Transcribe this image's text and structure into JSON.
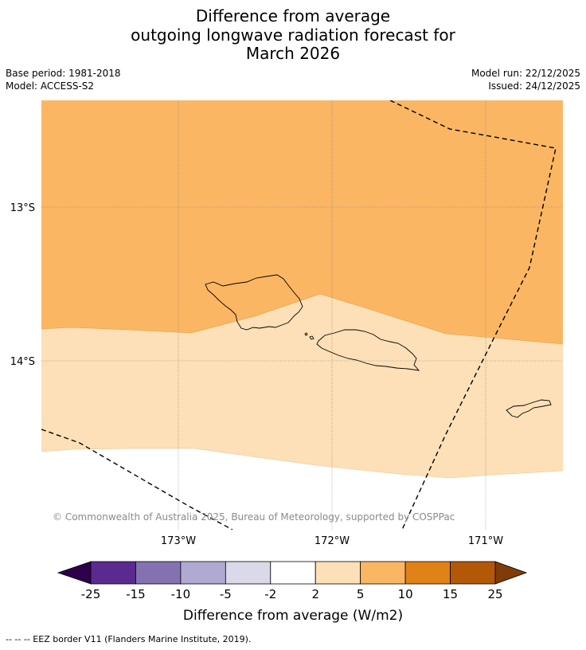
{
  "title": {
    "line1": "Difference from average",
    "line2": "outgoing longwave radiation forecast for",
    "line3": "March 2026"
  },
  "meta": {
    "base_period": "Base period: 1981-2018",
    "model": "Model: ACCESS-S2",
    "model_run": "Model run: 22/12/2025",
    "issued": "Issued: 24/12/2025"
  },
  "map": {
    "lat_labels": [
      "13°S",
      "14°S"
    ],
    "lon_labels": [
      "173°W",
      "172°W",
      "171°W"
    ],
    "credit": "© Commonwealth of Australia 2025, Bureau of Meteorology, supported by COSPPac",
    "colors": {
      "band_5_10": "#fbb663",
      "band_2_5": "#fde0b7",
      "band_neutral": "#ffffff",
      "coast": "#000000",
      "grid": "#7a7a7a"
    }
  },
  "colorbar": {
    "ticks": [
      "-25",
      "-15",
      "-10",
      "-5",
      "-2",
      "2",
      "5",
      "10",
      "15",
      "25"
    ],
    "colors": [
      "#5a2a90",
      "#8472b0",
      "#b0a9d2",
      "#d9d9ea",
      "#ffffff",
      "#fde0b7",
      "#fbb663",
      "#e08217",
      "#b35806"
    ],
    "extend_low_color": "#2d004b",
    "extend_high_color": "#7f3b08",
    "label": "Difference from average (W/m2)"
  },
  "footer": {
    "text": "--  --  -- EEZ border V11 (Flanders Marine Institute, 2019)."
  }
}
